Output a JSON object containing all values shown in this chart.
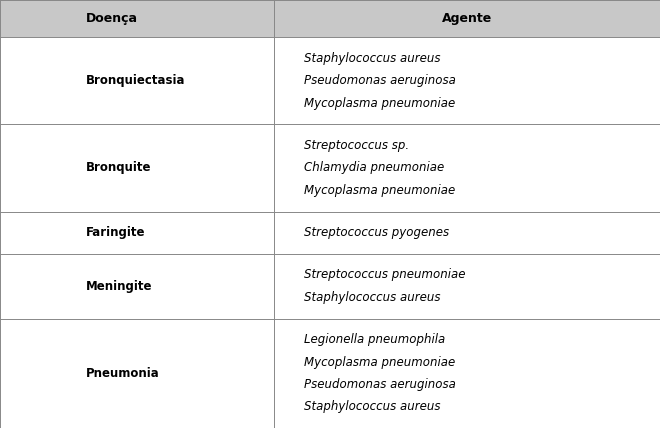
{
  "col1_header": "Doença",
  "col2_header": "Agente",
  "rows": [
    {
      "doenca": "Bronquiectasia",
      "agentes": [
        "Staphylococcus aureus",
        "Pseudomonas aeruginosa",
        "Mycoplasma pneumoniae"
      ]
    },
    {
      "doenca": "Bronquite",
      "agentes": [
        "Streptococcus sp.",
        "Chlamydia pneumoniae",
        "Mycoplasma pneumoniae"
      ]
    },
    {
      "doenca": "Faringite",
      "agentes": [
        "Streptococcus pyogenes"
      ]
    },
    {
      "doenca": "Meningite",
      "agentes": [
        "Streptococcus pneumoniae",
        "Staphylococcus aureus"
      ]
    },
    {
      "doenca": "Pneumonia",
      "agentes": [
        "Legionella pneumophila",
        "Mycoplasma pneumoniae",
        "Pseudomonas aeruginosa",
        "Staphylococcus aureus"
      ]
    }
  ],
  "header_bg": "#c8c8c8",
  "row_bg": "#ffffff",
  "border_color": "#888888",
  "header_font_size": 9.0,
  "cell_font_size": 8.5,
  "col_split": 0.415,
  "fig_width": 6.6,
  "fig_height": 4.28,
  "dpi": 100
}
